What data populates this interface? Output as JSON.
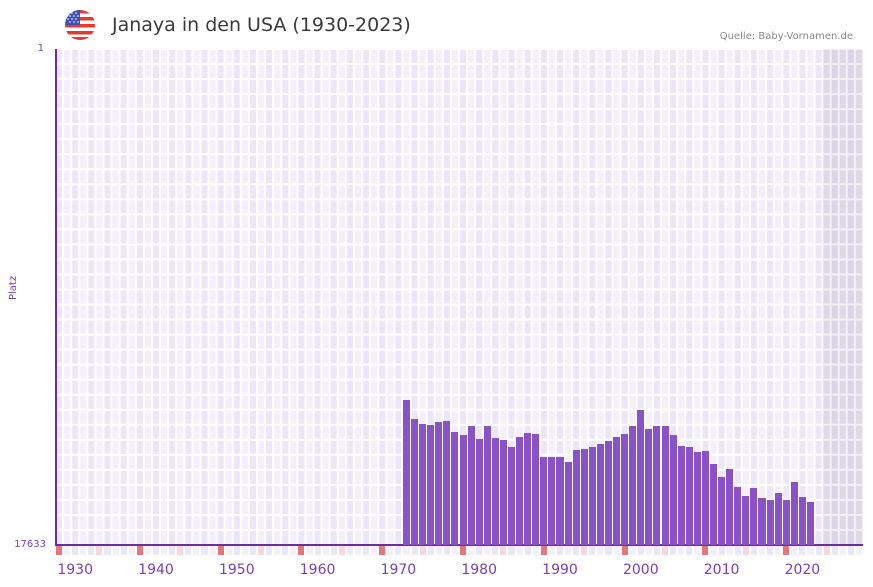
{
  "header": {
    "title": "Janaya in den USA (1930-2023)",
    "source": "Quelle: Baby-Vornamen.de",
    "flag_icon": "usa-flag-icon"
  },
  "axis": {
    "ylabel": "Platz",
    "ytop": "1",
    "ybottom": "17633",
    "xticks": [
      "1930",
      "1940",
      "1950",
      "1960",
      "1970",
      "1980",
      "1990",
      "2000",
      "2010",
      "2020"
    ]
  },
  "colors": {
    "bar": "#8a52c8",
    "axis": "#6a2f9e",
    "grid_bg_a": "#f3effc",
    "grid_bg_b": "#ece7f8",
    "future_bg": "#e4e0ee",
    "decade_marker": "#e5767e",
    "halfdecade_marker": "#f5d7e0"
  },
  "chart_data": {
    "type": "bar",
    "title": "Janaya in den USA (1930-2023)",
    "xlabel": "",
    "ylabel": "Platz",
    "ylim": [
      17633,
      1
    ],
    "y_inverted": true,
    "x": [
      1971,
      1972,
      1973,
      1974,
      1975,
      1976,
      1977,
      1978,
      1979,
      1980,
      1981,
      1982,
      1983,
      1984,
      1985,
      1986,
      1987,
      1988,
      1989,
      1990,
      1991,
      1992,
      1993,
      1994,
      1995,
      1996,
      1997,
      1998,
      1999,
      2000,
      2001,
      2002,
      2003,
      2004,
      2005,
      2006,
      2007,
      2008,
      2009,
      2010,
      2011,
      2012,
      2013,
      2014,
      2015,
      2016,
      2017,
      2018,
      2019,
      2020,
      2021
    ],
    "values": [
      12477,
      13153,
      13330,
      13366,
      13259,
      13224,
      13615,
      13721,
      13401,
      13864,
      13401,
      13828,
      13899,
      14148,
      13793,
      13650,
      13686,
      14504,
      14504,
      14504,
      14681,
      14255,
      14219,
      14148,
      14042,
      13935,
      13793,
      13686,
      13401,
      12833,
      13508,
      13401,
      13401,
      13721,
      14113,
      14148,
      14326,
      14290,
      14753,
      15215,
      14930,
      15570,
      15890,
      15605,
      15961,
      16032,
      15783,
      16032,
      15392,
      15925,
      16103
    ],
    "xrange": [
      1928,
      2028
    ],
    "grid": true,
    "future_shaded_from": 2023
  }
}
